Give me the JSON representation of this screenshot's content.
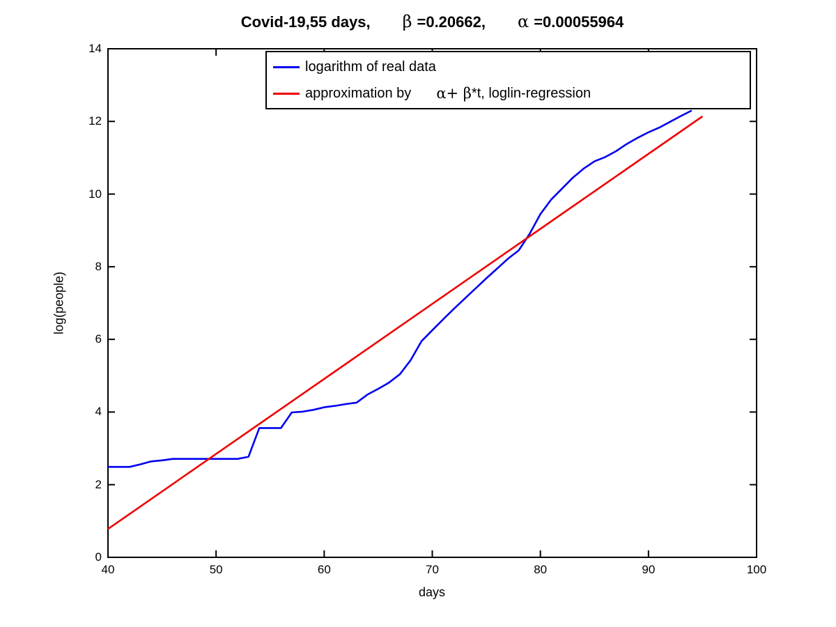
{
  "title": {
    "main": "Covid-19,55 days,",
    "beta_symbol": "β",
    "beta_value": "=0.20662,",
    "alpha_symbol": "α",
    "alpha_value": "=0.00055964"
  },
  "axes": {
    "xlabel": "days",
    "ylabel": "log(people)"
  },
  "legend": {
    "items": [
      {
        "label": "logarithm of real data",
        "color": "#0000ee"
      },
      {
        "label_prefix": "approximation by",
        "formula_greek": "α+ β",
        "formula_rest": "*t, loglin-regression",
        "color": "#ee0000"
      }
    ]
  },
  "chart_data": {
    "type": "line",
    "title": "Covid-19,55 days, β =0.20662, α =0.00055964",
    "xlabel": "days",
    "ylabel": "log(people)",
    "xlim": [
      40,
      100
    ],
    "ylim": [
      0,
      14
    ],
    "xticks": [
      40,
      50,
      60,
      70,
      80,
      90,
      100
    ],
    "yticks": [
      0,
      2,
      4,
      6,
      8,
      10,
      12,
      14
    ],
    "grid": false,
    "legend_position": "inside-top-center",
    "series": [
      {
        "name": "logarithm of real data",
        "id": "real-data",
        "color": "#0000ee",
        "x": [
          40,
          41,
          42,
          43,
          44,
          45,
          46,
          47,
          48,
          49,
          50,
          51,
          52,
          53,
          54,
          55,
          56,
          57,
          58,
          59,
          60,
          61,
          62,
          63,
          64,
          65,
          66,
          67,
          68,
          69,
          70,
          71,
          72,
          73,
          74,
          75,
          76,
          77,
          78,
          79,
          80,
          81,
          82,
          83,
          84,
          85,
          86,
          87,
          88,
          89,
          90,
          91,
          92,
          93,
          94
        ],
        "y": [
          2.49,
          2.49,
          2.49,
          2.56,
          2.64,
          2.67,
          2.71,
          2.71,
          2.71,
          2.71,
          2.71,
          2.71,
          2.71,
          2.77,
          3.56,
          3.56,
          3.56,
          3.99,
          4.01,
          4.06,
          4.13,
          4.17,
          4.22,
          4.26,
          4.48,
          4.64,
          4.81,
          5.04,
          5.43,
          5.95,
          6.25,
          6.55,
          6.84,
          7.12,
          7.4,
          7.68,
          7.95,
          8.22,
          8.45,
          8.9,
          9.45,
          9.85,
          10.15,
          10.45,
          10.7,
          10.9,
          11.02,
          11.18,
          11.38,
          11.55,
          11.7,
          11.83,
          11.99,
          12.15,
          12.3
        ]
      },
      {
        "name": "approximation by α+ β*t, loglin-regression",
        "id": "regression",
        "color": "#ee0000",
        "x": [
          40,
          95
        ],
        "y": [
          0.78,
          12.14
        ],
        "beta": 0.20662,
        "alpha": 0.00055964
      }
    ]
  }
}
